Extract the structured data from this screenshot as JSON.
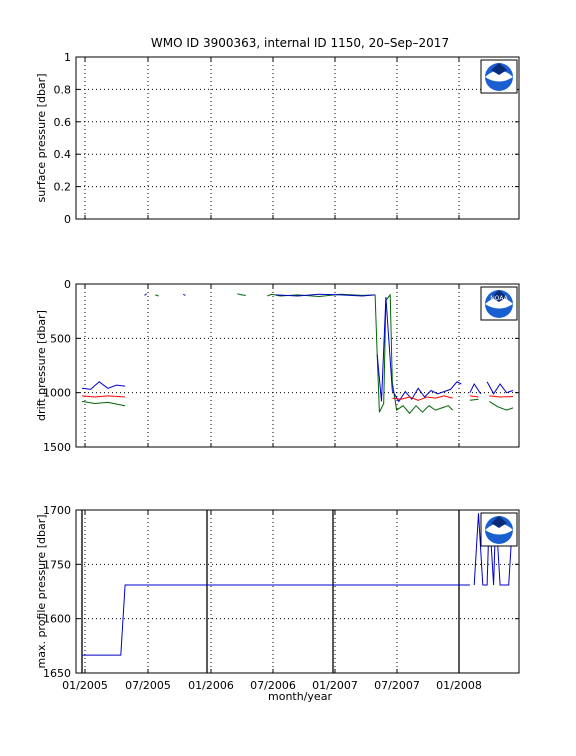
{
  "title": "WMO ID 3900363, internal ID 1150, 20–Sep–2017",
  "xlabel": "month/year",
  "x_tick_labels": [
    "01/2005",
    "07/2005",
    "01/2006",
    "07/2006",
    "01/2007",
    "07/2007",
    "01/2008"
  ],
  "colors": {
    "blue": "#0000cc",
    "red": "#ff0000",
    "green": "#006400",
    "bold_line": "#000000"
  },
  "logo_icon": "noaa-logo-icon",
  "logo_text": "NOAA",
  "chart_data": [
    {
      "type": "line",
      "ylabel": "surface pressure [dbar]",
      "ylim": [
        0,
        1
      ],
      "y_ticks": [
        "0",
        "0.2",
        "0.4",
        "0.6",
        "0.8",
        "1"
      ],
      "inverted": false,
      "grid": true,
      "series": []
    },
    {
      "type": "line",
      "ylabel": "drift pressure [dbar]",
      "ylim": [
        0,
        1500
      ],
      "y_ticks": [
        "0",
        "500",
        "1000",
        "1500"
      ],
      "inverted": true,
      "grid": true,
      "segments": [
        {
          "color": "blue",
          "points": [
            [
              0.0,
              960
            ],
            [
              0.02,
              970
            ],
            [
              0.04,
              900
            ],
            [
              0.06,
              960
            ],
            [
              0.08,
              930
            ],
            [
              0.1,
              940
            ]
          ]
        },
        {
          "color": "red",
          "points": [
            [
              0.0,
              1030
            ],
            [
              0.03,
              1040
            ],
            [
              0.06,
              1030
            ],
            [
              0.1,
              1040
            ]
          ]
        },
        {
          "color": "green",
          "points": [
            [
              0.0,
              1080
            ],
            [
              0.03,
              1100
            ],
            [
              0.06,
              1090
            ],
            [
              0.1,
              1120
            ]
          ]
        },
        {
          "color": "blue",
          "points": [
            [
              0.145,
              105
            ],
            [
              0.15,
              90
            ]
          ]
        },
        {
          "color": "green",
          "points": [
            [
              0.17,
              100
            ],
            [
              0.178,
              110
            ]
          ]
        },
        {
          "color": "blue",
          "points": [
            [
              0.235,
              95
            ],
            [
              0.24,
              105
            ]
          ]
        },
        {
          "color": "green",
          "points": [
            [
              0.36,
              90
            ],
            [
              0.37,
              100
            ],
            [
              0.38,
              105
            ]
          ]
        },
        {
          "color": "green",
          "points": [
            [
              0.43,
              110
            ],
            [
              0.44,
              95
            ],
            [
              0.46,
              110
            ],
            [
              0.5,
              100
            ],
            [
              0.55,
              115
            ],
            [
              0.6,
              95
            ],
            [
              0.65,
              105
            ],
            [
              0.68,
              100
            ]
          ]
        },
        {
          "color": "blue",
          "points": [
            [
              0.45,
              100
            ],
            [
              0.5,
              110
            ],
            [
              0.55,
              95
            ],
            [
              0.6,
              100
            ],
            [
              0.65,
              110
            ],
            [
              0.68,
              100
            ]
          ]
        },
        {
          "color": "green",
          "points": [
            [
              0.68,
              100
            ],
            [
              0.685,
              650
            ],
            [
              0.69,
              1180
            ],
            [
              0.7,
              1100
            ],
            [
              0.705,
              150
            ],
            [
              0.715,
              100
            ],
            [
              0.72,
              900
            ],
            [
              0.73,
              1160
            ],
            [
              0.745,
              1120
            ],
            [
              0.76,
              1190
            ],
            [
              0.775,
              1120
            ],
            [
              0.79,
              1180
            ],
            [
              0.805,
              1120
            ],
            [
              0.82,
              1160
            ],
            [
              0.835,
              1140
            ],
            [
              0.85,
              1120
            ],
            [
              0.86,
              1160
            ]
          ]
        },
        {
          "color": "blue",
          "points": [
            [
              0.685,
              650
            ],
            [
              0.695,
              1080
            ],
            [
              0.705,
              120
            ],
            [
              0.72,
              980
            ],
            [
              0.735,
              1080
            ],
            [
              0.75,
              990
            ],
            [
              0.765,
              1060
            ],
            [
              0.78,
              960
            ],
            [
              0.795,
              1040
            ],
            [
              0.81,
              980
            ],
            [
              0.825,
              1010
            ],
            [
              0.84,
              990
            ],
            [
              0.855,
              970
            ],
            [
              0.87,
              900
            ],
            [
              0.88,
              920
            ]
          ]
        },
        {
          "color": "red",
          "points": [
            [
              0.72,
              1050
            ],
            [
              0.74,
              1060
            ],
            [
              0.76,
              1040
            ],
            [
              0.78,
              1070
            ],
            [
              0.8,
              1040
            ],
            [
              0.82,
              1050
            ],
            [
              0.84,
              1030
            ],
            [
              0.86,
              1050
            ]
          ]
        },
        {
          "color": "blue",
          "points": [
            [
              0.9,
              1000
            ],
            [
              0.91,
              920
            ],
            [
              0.925,
              1010
            ]
          ]
        },
        {
          "color": "blue",
          "points": [
            [
              0.94,
              900
            ],
            [
              0.955,
              1010
            ],
            [
              0.97,
              920
            ],
            [
              0.985,
              1000
            ],
            [
              1.0,
              980
            ]
          ]
        },
        {
          "color": "red",
          "points": [
            [
              0.9,
              1030
            ],
            [
              0.92,
              1040
            ]
          ]
        },
        {
          "color": "red",
          "points": [
            [
              0.945,
              1030
            ],
            [
              0.97,
              1040
            ],
            [
              1.0,
              1035
            ]
          ]
        },
        {
          "color": "green",
          "points": [
            [
              0.9,
              1070
            ],
            [
              0.92,
              1060
            ]
          ]
        },
        {
          "color": "green",
          "points": [
            [
              0.945,
              1080
            ],
            [
              0.965,
              1130
            ],
            [
              0.985,
              1160
            ],
            [
              1.0,
              1140
            ]
          ]
        }
      ]
    },
    {
      "type": "line",
      "ylabel": "max. profile pressure [dbar]",
      "ylim": [
        1650,
        1700
      ],
      "y_ticks": [
        "1650",
        "1600",
        "1750",
        "1700"
      ],
      "grid": true,
      "segments": [
        {
          "color": "blue",
          "points": [
            [
              0.0,
              0.89
            ],
            [
              0.09,
              0.89
            ],
            [
              0.1,
              0.46
            ],
            [
              0.9,
              0.46
            ]
          ]
        },
        {
          "color": "blue",
          "points": [
            [
              0.91,
              0.46
            ],
            [
              0.92,
              0.02
            ],
            [
              0.93,
              0.46
            ],
            [
              0.94,
              0.46
            ],
            [
              0.945,
              0.02
            ],
            [
              0.955,
              0.46
            ],
            [
              0.96,
              0.02
            ],
            [
              0.97,
              0.46
            ],
            [
              0.99,
              0.46
            ],
            [
              1.0,
              0.02
            ]
          ]
        }
      ],
      "vertical_lines_x": [
        0.0,
        0.29,
        0.58,
        0.87
      ]
    }
  ]
}
